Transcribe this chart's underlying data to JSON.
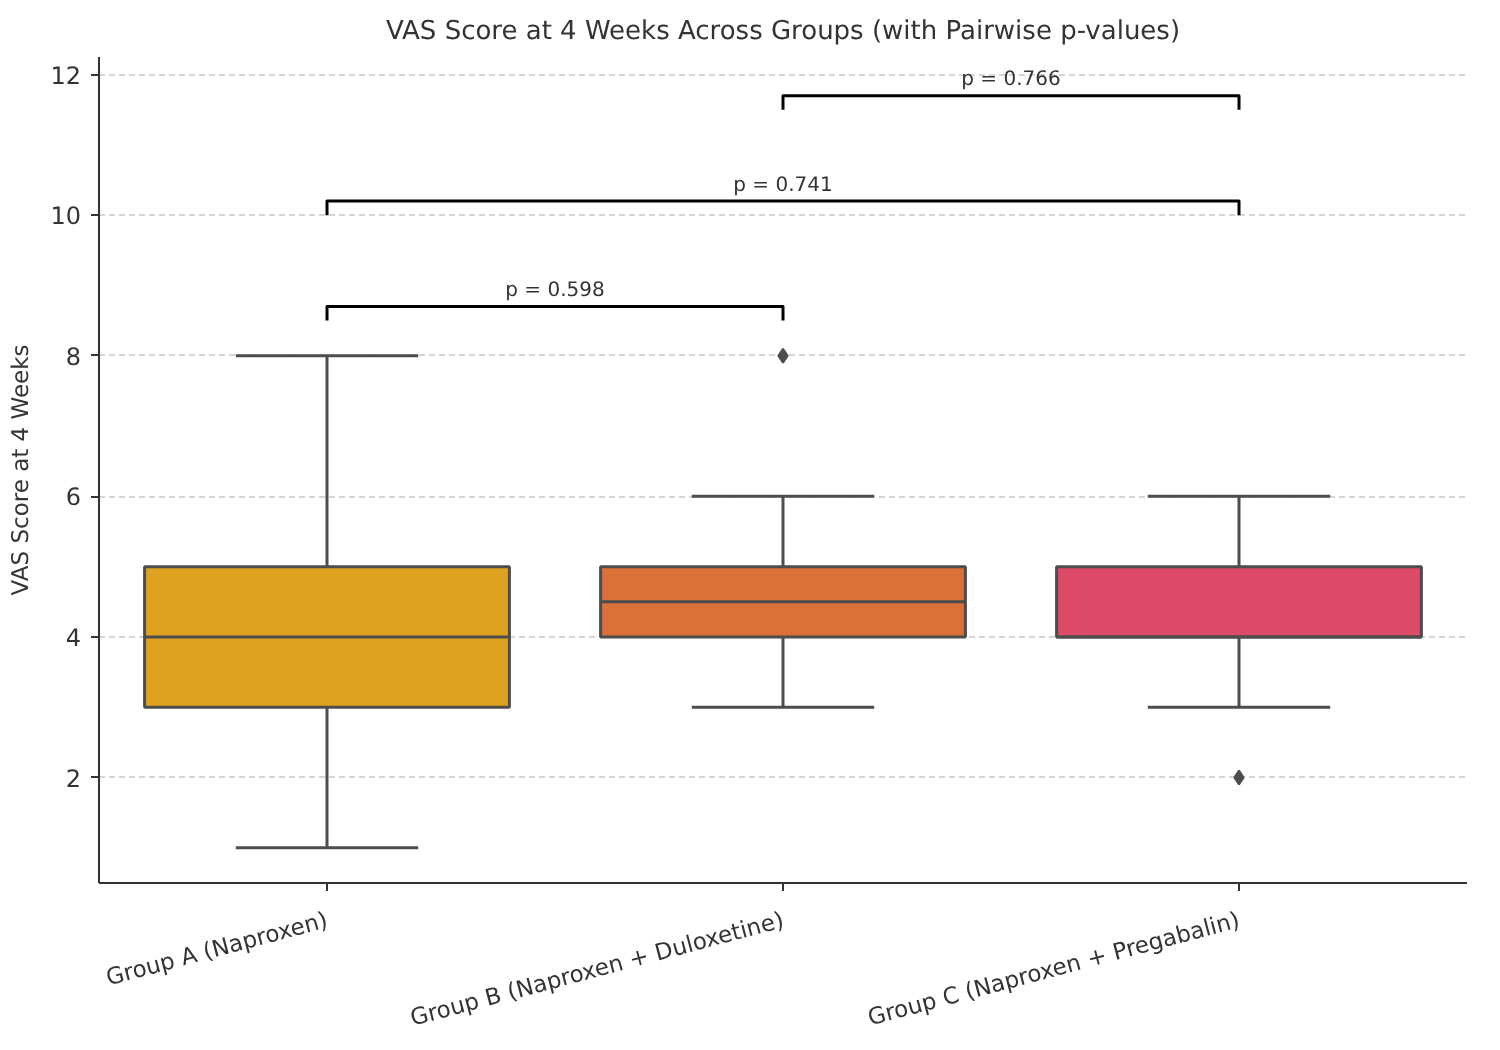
{
  "chart_data": {
    "type": "box",
    "title": "VAS Score at 4 Weeks Across Groups (with Pairwise p-values)",
    "ylabel": "VAS Score at 4 Weeks",
    "categories": [
      "Group A (Naproxen)",
      "Group B (Naproxen + Duloxetine)",
      "Group C (Naproxen + Pregabalin)"
    ],
    "boxes": [
      {
        "low": 1,
        "q1": 3,
        "median": 4,
        "q3": 5,
        "high": 8
      },
      {
        "low": 3,
        "q1": 4,
        "median": 4.5,
        "q3": 5,
        "high": 6,
        "outliers": [
          8
        ]
      },
      {
        "low": 3,
        "q1": 4,
        "median": 4,
        "q3": 5,
        "high": 6,
        "outliers": [
          2
        ]
      }
    ],
    "colors": [
      "#dfa220",
      "#db7038",
      "#dc4a67"
    ],
    "ylim": [
      0.5,
      12.25
    ],
    "yticks": [
      2,
      4,
      6,
      8,
      10,
      12
    ],
    "grid": "y",
    "marker": "diamond",
    "annotations": [
      "p = 0.598",
      "p = 0.741",
      "p = 0.766"
    ]
  }
}
